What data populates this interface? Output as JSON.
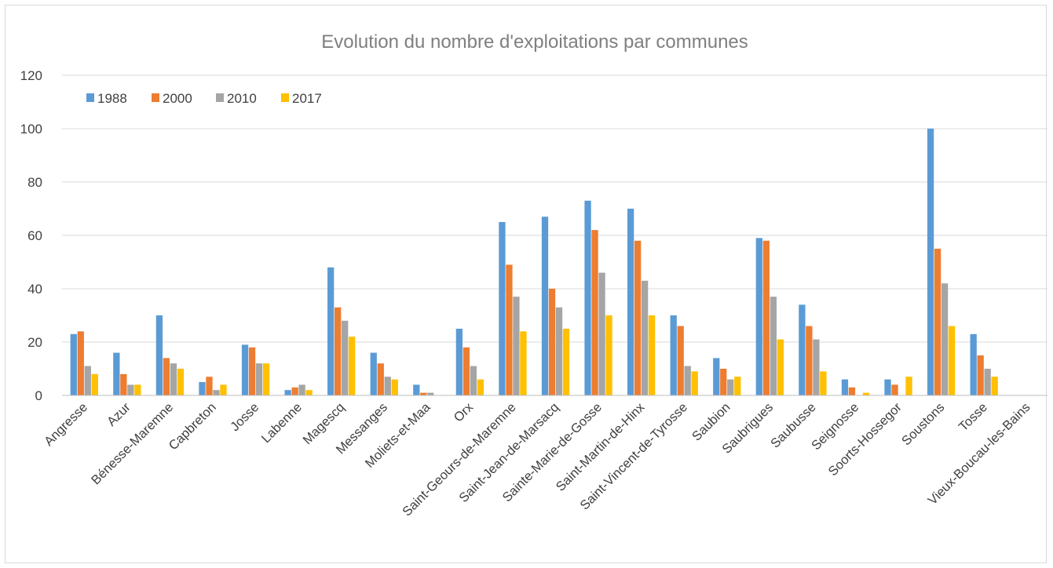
{
  "chart_data": {
    "type": "bar",
    "title": "Evolution du nombre d'exploitations par communes",
    "xlabel": "",
    "ylabel": "",
    "ylim": [
      0,
      120
    ],
    "yticks": [
      0,
      20,
      40,
      60,
      80,
      100,
      120
    ],
    "grid": true,
    "legend_position": "top-left",
    "categories": [
      "Angresse",
      "Azur",
      "Bénesse-Maremne",
      "Capbreton",
      "Josse",
      "Labenne",
      "Magescq",
      "Messanges",
      "Moliets-et-Maa",
      "Orx",
      "Saint-Geours-de-Maremne",
      "Saint-Jean-de-Marsacq",
      "Sainte-Marie-de-Gosse",
      "Saint-Martin-de-Hinx",
      "Saint-Vincent-de-Tyrosse",
      "Saubion",
      "Saubrigues",
      "Saubusse",
      "Seignosse",
      "Soorts-Hossegor",
      "Soustons",
      "Tosse",
      "Vieux-Boucau-les-Bains"
    ],
    "series": [
      {
        "name": "1988",
        "color": "#5b9bd5",
        "values": [
          23,
          16,
          30,
          5,
          19,
          2,
          48,
          16,
          4,
          25,
          65,
          67,
          73,
          70,
          30,
          14,
          59,
          34,
          6,
          6,
          100,
          23,
          0
        ]
      },
      {
        "name": "2000",
        "color": "#ed7d31",
        "values": [
          24,
          8,
          14,
          7,
          18,
          3,
          33,
          12,
          1,
          18,
          49,
          40,
          62,
          58,
          26,
          10,
          58,
          26,
          3,
          4,
          55,
          15,
          0
        ]
      },
      {
        "name": "2010",
        "color": "#a5a5a5",
        "values": [
          11,
          4,
          12,
          2,
          12,
          4,
          28,
          7,
          1,
          11,
          37,
          33,
          46,
          43,
          11,
          6,
          37,
          21,
          0,
          0,
          42,
          10,
          0
        ]
      },
      {
        "name": "2017",
        "color": "#ffc000",
        "values": [
          8,
          4,
          10,
          4,
          12,
          2,
          22,
          6,
          0,
          6,
          24,
          25,
          30,
          30,
          9,
          7,
          21,
          9,
          1,
          7,
          26,
          7,
          0
        ]
      }
    ]
  }
}
